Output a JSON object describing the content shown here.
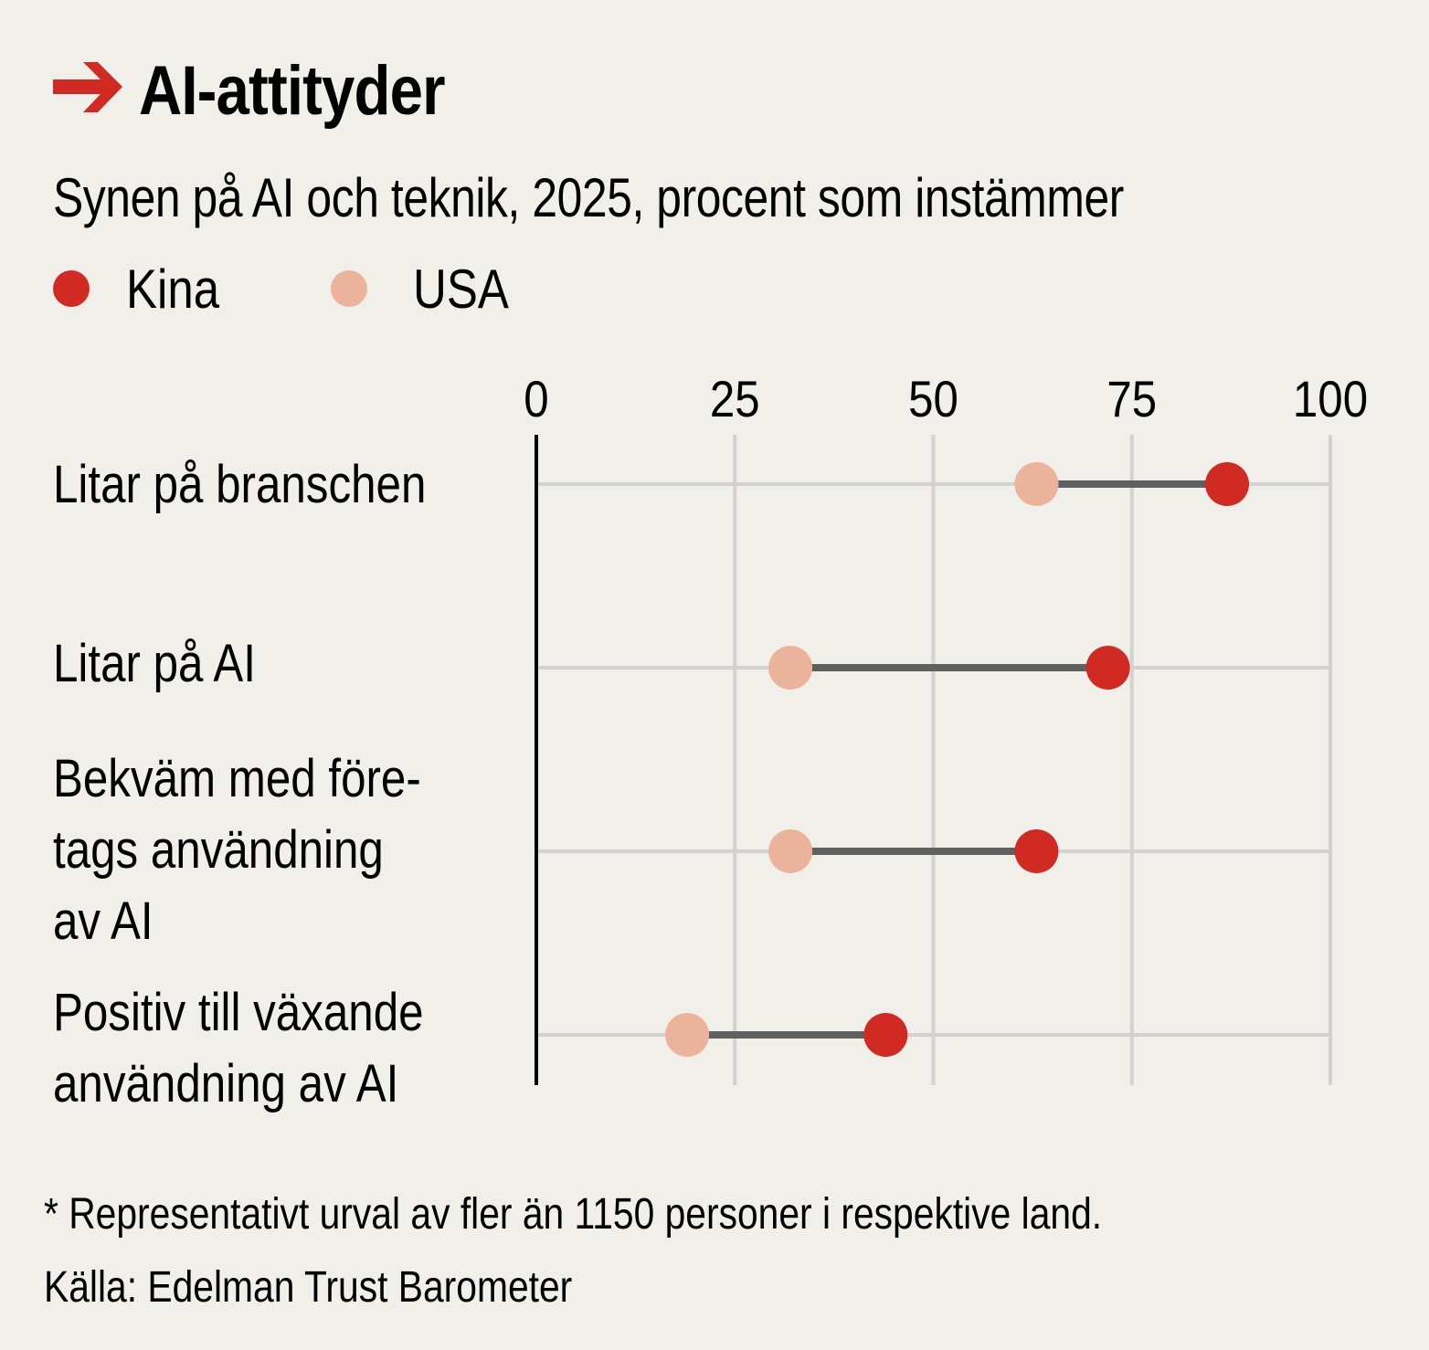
{
  "title": "AI-attityder",
  "colors": {
    "kina": "#d12a23",
    "usa": "#ebb39b",
    "line": "#606060",
    "grid": "#d2d2d0",
    "background": "#f0efe9"
  },
  "chart_data": {
    "type": "dumbbell",
    "title": "AI-attityder",
    "subtitle": "Synen på AI och teknik, 2025, procent som instämmer",
    "legend": [
      {
        "name": "Kina",
        "color": "#d12a23"
      },
      {
        "name": "USA",
        "color": "#ebb39b"
      }
    ],
    "legend_placement": "top-left",
    "xlim": [
      0,
      100
    ],
    "xticks": [
      "0",
      "25",
      "50",
      "75",
      "100"
    ],
    "grid": true,
    "categories": [
      "Litar på branschen",
      "Litar på AI",
      "Bekväm med före-\ntags användning\nav AI",
      "Positiv till växande\nanvändning av AI"
    ],
    "series": [
      {
        "name": "Kina",
        "values": [
          87,
          72,
          63,
          44
        ]
      },
      {
        "name": "USA",
        "values": [
          63,
          32,
          32,
          19
        ]
      }
    ]
  },
  "footnote": "* Representativt urval av fler än 1150 personer i respektive land.",
  "source": "Källa: Edelman Trust Barometer"
}
